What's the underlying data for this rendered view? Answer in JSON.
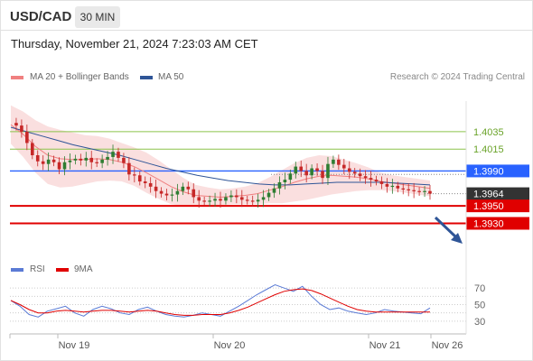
{
  "header": {
    "symbol": "USD/CAD",
    "timeframe": "30 MIN",
    "datetime": "Thursday, November 21, 2024 7:23:03 AM CET"
  },
  "legend": {
    "items": [
      {
        "label": "MA 20 + Bollinger Bands",
        "color": "#f08080"
      },
      {
        "label": "MA 50",
        "color": "#2f5597"
      }
    ],
    "research": "Research © 2024 Trading Central"
  },
  "indicator_legend": {
    "items": [
      {
        "label": "RSI",
        "color": "#5b7bd5"
      },
      {
        "label": "9MA",
        "color": "#e00000"
      }
    ]
  },
  "colors": {
    "up": "#2e7d32",
    "down": "#c62828",
    "support": "#e00000",
    "resistance": "#2962ff",
    "target": "#8bc34a",
    "price_tag": "#333333",
    "arrow": "#2f5597"
  },
  "chart_data": [
    {
      "type": "line",
      "title": "USD/CAD 30 MIN",
      "x_ticks": [
        "Nov 19",
        "Nov 20",
        "Nov 21",
        "Nov 26"
      ],
      "ylim": [
        1.3915,
        1.407
      ],
      "grid": false,
      "legend_position": "top-left",
      "price_path": [
        1.4045,
        1.4042,
        1.4035,
        1.4022,
        1.4008,
        1.4001,
        1.3998,
        1.4003,
        1.4,
        1.3992,
        1.4,
        1.4002,
        1.4004,
        1.4002,
        1.4005,
        1.4,
        1.3999,
        1.4003,
        1.4006,
        1.4012,
        1.4005,
        1.3999,
        1.3986,
        1.3985,
        1.3978,
        1.3976,
        1.3972,
        1.3967,
        1.3964,
        1.3962,
        1.3963,
        1.3967,
        1.3972,
        1.3969,
        1.396,
        1.3956,
        1.3955,
        1.3956,
        1.3958,
        1.3956,
        1.396,
        1.3962,
        1.396,
        1.3957,
        1.3956,
        1.3955,
        1.3957,
        1.396,
        1.3965,
        1.397,
        1.3977,
        1.398,
        1.3987,
        1.3995,
        1.399,
        1.3985,
        1.3993,
        1.399,
        1.3982,
        1.3998,
        1.4003,
        1.3997,
        1.3993,
        1.3989,
        1.3987,
        1.3984,
        1.3982,
        1.398,
        1.3978,
        1.3975,
        1.3972,
        1.3973,
        1.397,
        1.3969,
        1.3968,
        1.3967,
        1.3966,
        1.3967,
        1.3964
      ],
      "series": [
        {
          "name": "MA 20",
          "values": [
            1.4043,
            1.4032,
            1.4018,
            1.4008,
            1.4004,
            1.4003,
            1.4003,
            1.4004,
            1.4003,
            1.4,
            1.3995,
            1.3988,
            1.398,
            1.3972,
            1.3966,
            1.3962,
            1.3961,
            1.396,
            1.3961,
            1.3962,
            1.3964,
            1.3968,
            1.3972,
            1.3977,
            1.3981,
            1.3984,
            1.3985,
            1.3984,
            1.3983,
            1.3981,
            1.3978,
            1.3976,
            1.3974,
            1.3972,
            1.397
          ]
        },
        {
          "name": "MA 50",
          "values": [
            1.404,
            1.4035,
            1.403,
            1.4025,
            1.402,
            1.4016,
            1.4012,
            1.4008,
            1.4003,
            1.3998,
            1.3993,
            1.3989,
            1.3985,
            1.3982,
            1.3979,
            1.3977,
            1.3975,
            1.3974,
            1.3974,
            1.3975,
            1.3976,
            1.3977,
            1.3977,
            1.3977,
            1.3977,
            1.3976,
            1.3975,
            1.3974
          ]
        },
        {
          "name": "RSI",
          "values": [
            55,
            48,
            38,
            35,
            42,
            45,
            48,
            40,
            36,
            44,
            48,
            45,
            40,
            38,
            44,
            47,
            42,
            38,
            36,
            35,
            37,
            40,
            38,
            36,
            42,
            48,
            55,
            62,
            68,
            74,
            70,
            66,
            72,
            60,
            50,
            44,
            46,
            42,
            40,
            38,
            40,
            44,
            42,
            41,
            40,
            39,
            46
          ]
        },
        {
          "name": "9MA",
          "values": [
            55,
            50,
            44,
            40,
            40,
            42,
            43,
            42,
            41,
            42,
            43,
            43,
            42,
            41,
            42,
            43,
            42,
            40,
            38,
            37,
            37,
            38,
            38,
            38,
            40,
            43,
            47,
            52,
            57,
            62,
            66,
            68,
            69,
            67,
            63,
            58,
            53,
            48,
            44,
            42,
            41,
            41,
            41,
            41,
            41,
            41,
            41
          ]
        }
      ],
      "levels": [
        {
          "label": "1.4035",
          "value": 1.4035,
          "kind": "target"
        },
        {
          "label": "1.4015",
          "value": 1.4015,
          "kind": "target"
        },
        {
          "label": "1.3990",
          "value": 1.399,
          "kind": "resistance"
        },
        {
          "label": "1.3964",
          "value": 1.3964,
          "kind": "last"
        },
        {
          "label": "1.3950",
          "value": 1.395,
          "kind": "support"
        },
        {
          "label": "1.3930",
          "value": 1.393,
          "kind": "support"
        }
      ],
      "rsi_axis": {
        "ticks": [
          "70",
          "50",
          "30"
        ],
        "range": [
          20,
          80
        ]
      }
    }
  ]
}
